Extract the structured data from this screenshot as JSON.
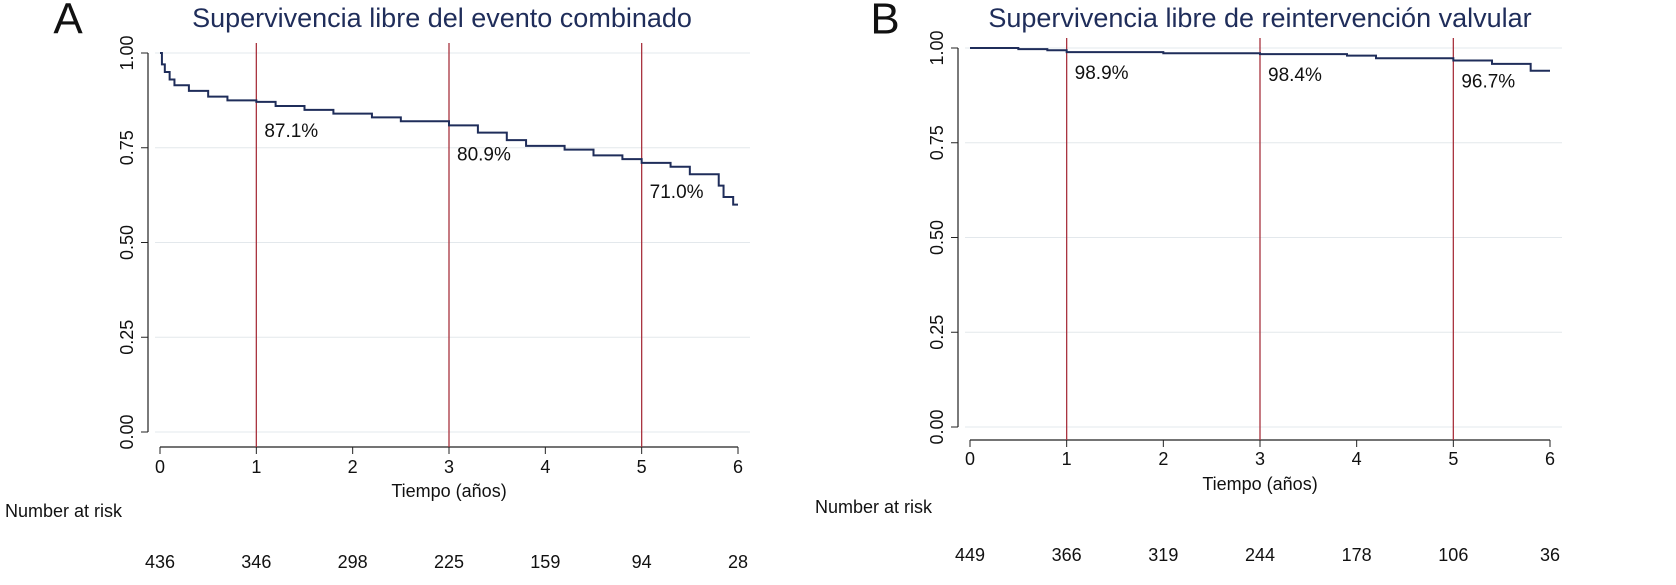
{
  "chart_data": [
    {
      "type": "line",
      "drawstyle": "steps-post",
      "panel": "A",
      "title": "Supervivencia libre del evento combinado",
      "xlabel": "Tiempo (años)",
      "x": [
        0,
        0.02,
        0.05,
        0.1,
        0.15,
        0.3,
        0.5,
        0.7,
        1,
        1.2,
        1.5,
        1.8,
        2.2,
        2.5,
        3,
        3.3,
        3.6,
        3.8,
        4.2,
        4.5,
        4.8,
        5,
        5.3,
        5.5,
        5.8,
        5.85,
        5.95,
        6
      ],
      "series": [
        {
          "color": "#1f2d5a",
          "values": [
            1.0,
            0.97,
            0.95,
            0.93,
            0.915,
            0.9,
            0.885,
            0.875,
            0.871,
            0.86,
            0.85,
            0.84,
            0.83,
            0.82,
            0.809,
            0.79,
            0.77,
            0.755,
            0.745,
            0.73,
            0.72,
            0.71,
            0.7,
            0.68,
            0.65,
            0.62,
            0.6,
            0.6
          ]
        }
      ],
      "xlim": [
        0,
        6
      ],
      "xticks": [
        0,
        1,
        2,
        3,
        4,
        5,
        6
      ],
      "ylim": [
        0,
        1
      ],
      "yticks": [
        {
          "value": 0,
          "label": "0.00"
        },
        {
          "value": 0.25,
          "label": "0.25"
        },
        {
          "value": 0.5,
          "label": "0.50"
        },
        {
          "value": 0.75,
          "label": "0.75"
        },
        {
          "value": 1,
          "label": "1.00"
        }
      ],
      "grid": true,
      "refline_color": "#a8323e",
      "annotations": [
        {
          "x": 1,
          "value": 0.871,
          "label": "87.1%"
        },
        {
          "x": 3,
          "value": 0.809,
          "label": "80.9%"
        },
        {
          "x": 5,
          "value": 0.71,
          "label": "71.0%"
        }
      ],
      "risk_label": "Number at risk",
      "number_at_risk": [
        436,
        346,
        298,
        225,
        159,
        94,
        28
      ]
    },
    {
      "type": "line",
      "drawstyle": "steps-post",
      "panel": "B",
      "title": "Supervivencia libre de reintervención valvular",
      "xlabel": "Tiempo (años)",
      "x": [
        0,
        0.5,
        0.8,
        1,
        2,
        3,
        3.9,
        4.2,
        5,
        5.4,
        5.8,
        6
      ],
      "series": [
        {
          "color": "#1f2d5a",
          "values": [
            1.0,
            0.997,
            0.994,
            0.989,
            0.986,
            0.984,
            0.98,
            0.973,
            0.967,
            0.958,
            0.94,
            0.94
          ]
        }
      ],
      "xlim": [
        0,
        6
      ],
      "xticks": [
        0,
        1,
        2,
        3,
        4,
        5,
        6
      ],
      "ylim": [
        0,
        1
      ],
      "yticks": [
        {
          "value": 0,
          "label": "0.00"
        },
        {
          "value": 0.25,
          "label": "0.25"
        },
        {
          "value": 0.5,
          "label": "0.50"
        },
        {
          "value": 0.75,
          "label": "0.75"
        },
        {
          "value": 1,
          "label": "1.00"
        }
      ],
      "grid": true,
      "refline_color": "#a8323e",
      "annotations": [
        {
          "x": 1,
          "value": 0.989,
          "label": "98.9%"
        },
        {
          "x": 3,
          "value": 0.984,
          "label": "98.4%"
        },
        {
          "x": 5,
          "value": 0.967,
          "label": "96.7%"
        }
      ],
      "risk_label": "Number at risk",
      "number_at_risk": [
        449,
        366,
        319,
        244,
        178,
        106,
        36
      ]
    }
  ]
}
